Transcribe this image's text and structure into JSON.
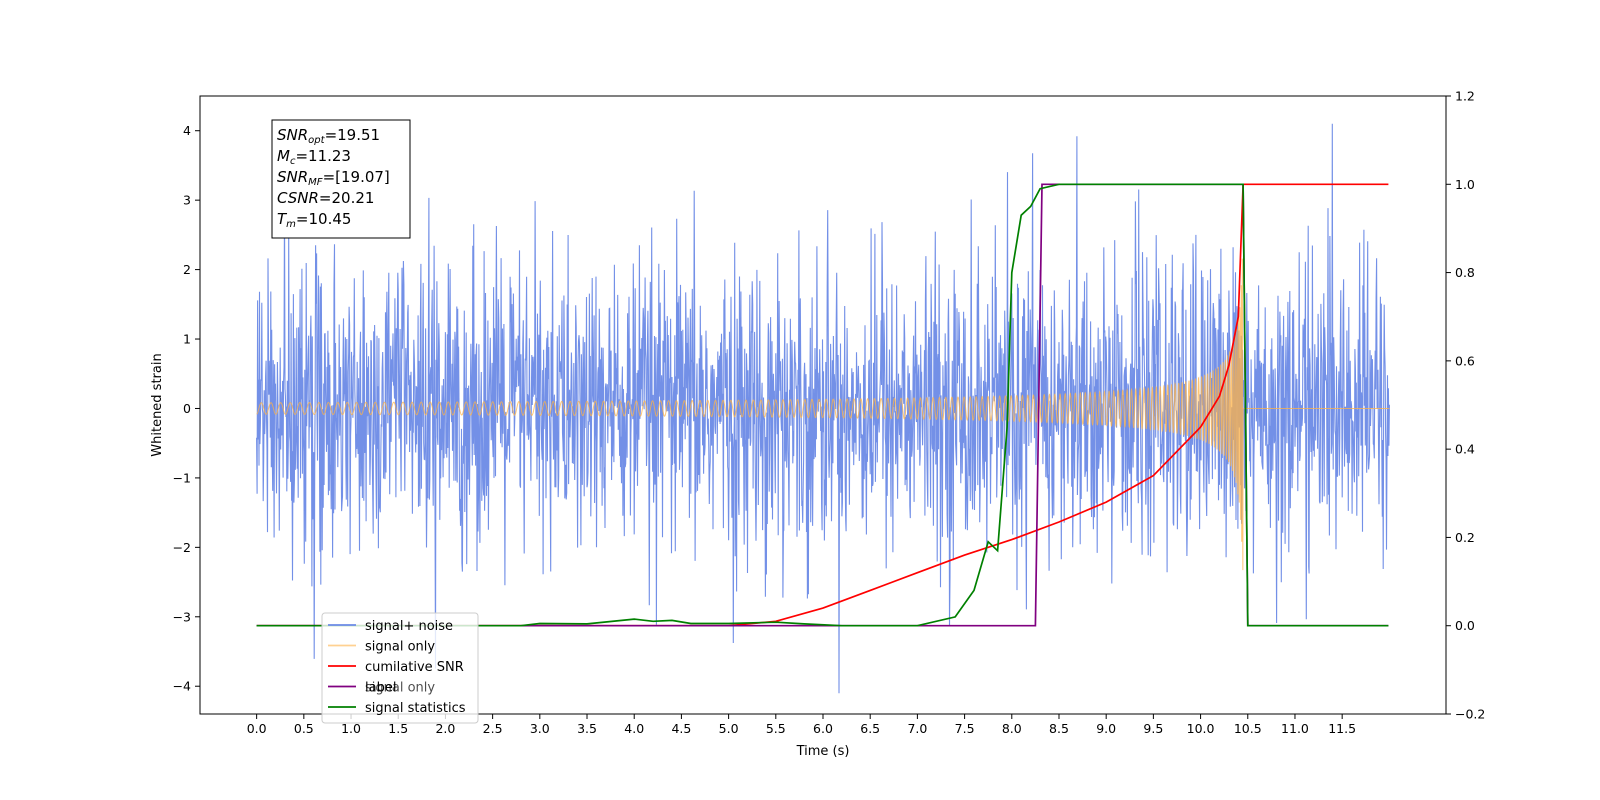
{
  "chart_data": {
    "type": "line",
    "title": "",
    "xlabel": "Time (s)",
    "ylabel": "Whitened strain",
    "ylabel_right": "",
    "xlim": [
      -0.6,
      12.6
    ],
    "ylim": [
      -4.4,
      4.5
    ],
    "ylim_right": [
      -0.2,
      1.2
    ],
    "x_ticks": [
      "0.0",
      "0.5",
      "1.0",
      "1.5",
      "2.0",
      "2.5",
      "3.0",
      "3.5",
      "4.0",
      "4.5",
      "5.0",
      "5.5",
      "6.0",
      "6.5",
      "7.0",
      "7.5",
      "8.0",
      "8.5",
      "9.0",
      "9.5",
      "10.0",
      "10.5",
      "11.0",
      "11.5"
    ],
    "y_ticks": [
      "4",
      "3",
      "2",
      "1",
      "0",
      "−1",
      "−2",
      "−3",
      "−4"
    ],
    "y_ticks_right": [
      "1.2",
      "1.0",
      "0.8",
      "0.6",
      "0.4",
      "0.2",
      "0.0",
      "−0.2"
    ],
    "grid": false,
    "legend_position": "lower-left",
    "annotation": {
      "lines": [
        {
          "sym": "SNR",
          "sub": "opt",
          "val": "=19.51"
        },
        {
          "sym": "M",
          "sub": "c",
          "val": "=11.23"
        },
        {
          "sym": "SNR",
          "sub": "MF",
          "val": "=[19.07]"
        },
        {
          "sym": "CSNR",
          "sub": "",
          "val": "=20.21"
        },
        {
          "sym": "T",
          "sub": "m",
          "val": "=10.45"
        }
      ]
    },
    "series": [
      {
        "name": "signal+ noise",
        "axis": "left",
        "color": "#6b8ae6",
        "kind": "noise",
        "x_range": [
          0.0,
          12.0
        ],
        "envelope_typical": 1.7,
        "envelope_max": 4.1
      },
      {
        "name": "signal only",
        "axis": "left",
        "color": "#ffb347",
        "kind": "chirp",
        "x_range": [
          0.0,
          12.0
        ],
        "merger_time": 10.45,
        "peak_amplitude": 2.6
      },
      {
        "name": "cumilative SNR",
        "axis": "right",
        "color": "#ff0000",
        "x": [
          0.0,
          5.0,
          5.5,
          6.0,
          6.5,
          7.0,
          7.5,
          8.0,
          8.5,
          9.0,
          9.5,
          10.0,
          10.2,
          10.3,
          10.4,
          10.45,
          10.5,
          11.0,
          11.99
        ],
        "values": [
          0.0,
          0.0,
          0.01,
          0.04,
          0.08,
          0.12,
          0.16,
          0.195,
          0.235,
          0.28,
          0.34,
          0.45,
          0.52,
          0.59,
          0.7,
          1.0,
          1.0,
          1.0,
          1.0
        ]
      },
      {
        "name": "label",
        "axis": "right",
        "color": "#800080",
        "x": [
          0.0,
          8.25,
          8.32,
          10.45,
          10.5,
          11.99
        ],
        "values": [
          0.0,
          0.0,
          1.0,
          1.0,
          0.0,
          0.0
        ]
      },
      {
        "name": "signal statistics",
        "axis": "right",
        "color": "#008000",
        "x": [
          0.0,
          2.8,
          3.0,
          3.5,
          4.0,
          4.2,
          4.4,
          4.6,
          5.0,
          5.5,
          5.8,
          6.2,
          7.0,
          7.4,
          7.6,
          7.75,
          7.85,
          7.95,
          8.0,
          8.1,
          8.2,
          8.3,
          8.5,
          9.0,
          10.0,
          10.4,
          10.45,
          10.5,
          10.6,
          11.99
        ],
        "values": [
          0.0,
          0.0,
          0.005,
          0.004,
          0.015,
          0.01,
          0.012,
          0.005,
          0.005,
          0.008,
          0.004,
          0.0,
          0.0,
          0.02,
          0.08,
          0.19,
          0.17,
          0.45,
          0.8,
          0.93,
          0.95,
          0.99,
          1.0,
          1.0,
          1.0,
          1.0,
          1.0,
          0.0,
          0.0,
          0.0
        ]
      }
    ],
    "legend_overlap_text": "signal only"
  }
}
